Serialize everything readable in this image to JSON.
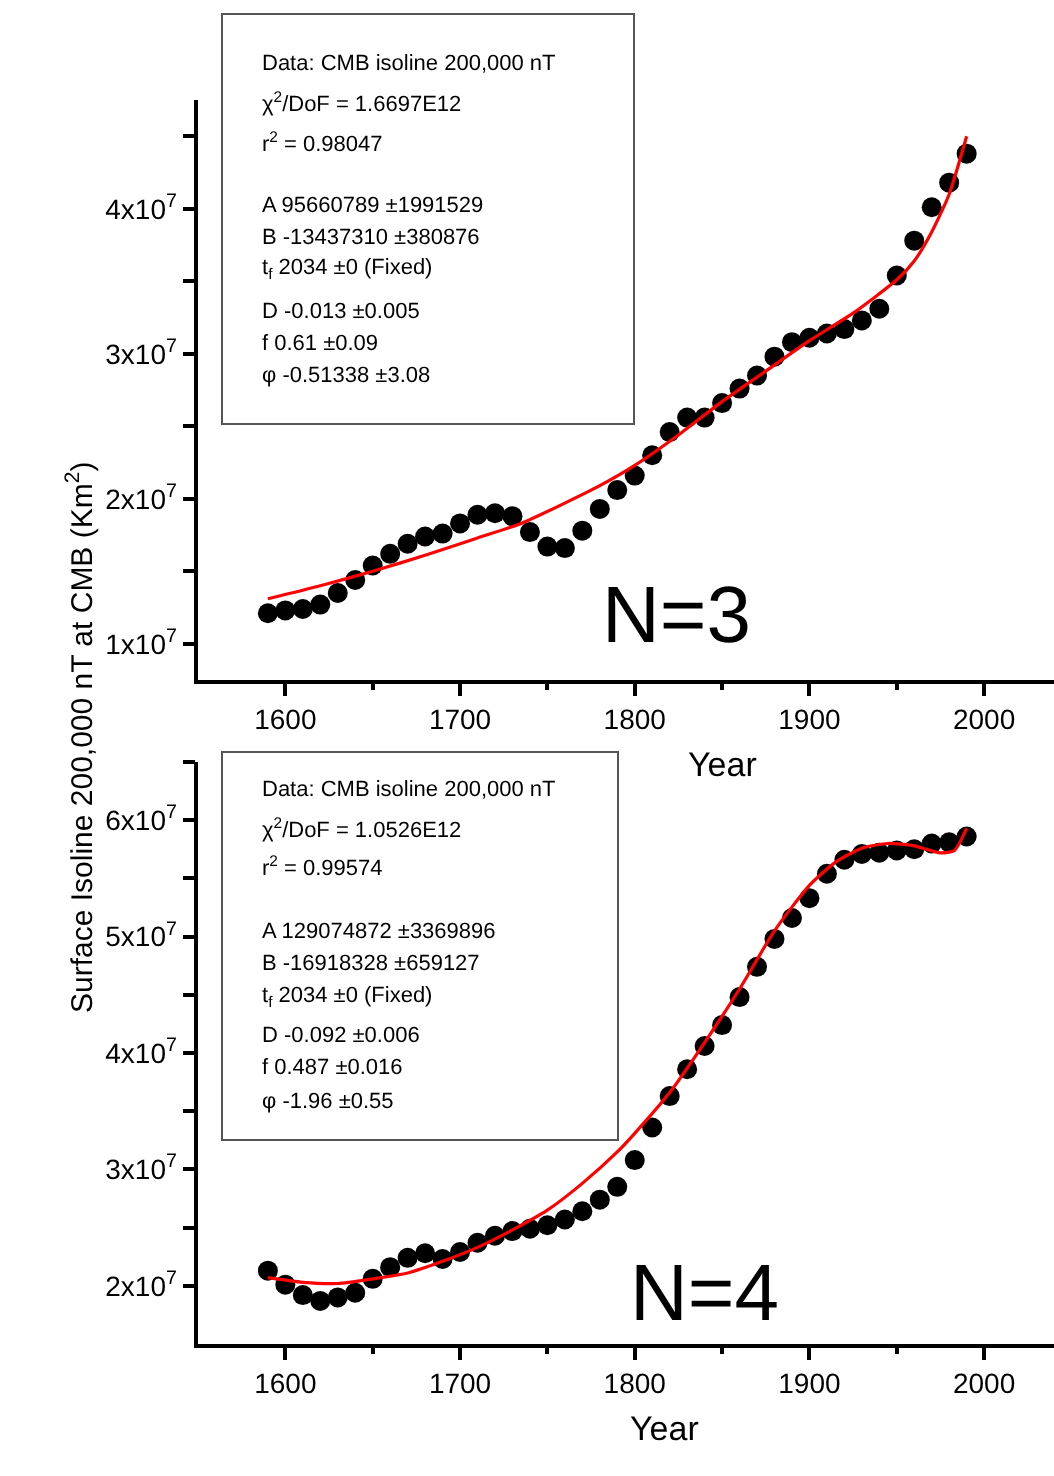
{
  "chart_data": [
    {
      "type": "scatter",
      "xlabel": "Year",
      "ylabel": "Surface Isoline 200,000 nT at CMB (Km$^{2}$)",
      "xlim": [
        1550,
        2040
      ],
      "ylim": [
        7500000,
        47500000
      ],
      "xticks": [
        1600,
        {
          "value": 1650,
          "label": null
        },
        1700,
        {
          "value": 1750,
          "label": null
        },
        1800,
        {
          "value": 1850,
          "label": null
        },
        1900,
        {
          "value": 1950,
          "label": null
        },
        2000
      ],
      "yticks": [
        {
          "value": 10000000,
          "label": "1x10$^{7}$"
        },
        {
          "value": 15000000,
          "label": null
        },
        {
          "value": 20000000,
          "label": "2x10$^{7}$"
        },
        {
          "value": 25000000,
          "label": null
        },
        {
          "value": 30000000,
          "label": "3x10$^{7}$"
        },
        {
          "value": 35000000,
          "label": null
        },
        {
          "value": 40000000,
          "label": "4x10$^{7}$"
        },
        {
          "value": 45000000,
          "label": null
        }
      ],
      "grid": false,
      "series": [
        {
          "color": "#000000",
          "marker": "circle",
          "x": [
            1590,
            1600,
            1610,
            1620,
            1630,
            1640,
            1650,
            1660,
            1670,
            1680,
            1690,
            1700,
            1710,
            1720,
            1730,
            1740,
            1750,
            1760,
            1770,
            1780,
            1790,
            1800,
            1810,
            1820,
            1830,
            1840,
            1850,
            1860,
            1870,
            1880,
            1890,
            1900,
            1910,
            1920,
            1930,
            1940,
            1950,
            1960,
            1970,
            1980,
            1990
          ],
          "values": [
            12100000,
            12300000,
            12400000,
            12700000,
            13500000,
            14400000,
            15400000,
            16200000,
            16900000,
            17400000,
            17600000,
            18300000,
            18900000,
            19000000,
            18800000,
            17700000,
            16700000,
            16600000,
            17800000,
            19300000,
            20600000,
            21600000,
            23000000,
            24600000,
            25600000,
            25600000,
            26600000,
            27600000,
            28500000,
            29800000,
            30800000,
            31100000,
            31400000,
            31700000,
            32300000,
            33100000,
            35400000,
            37800000,
            40100000,
            41800000,
            43800000
          ]
        },
        {
          "type": "line",
          "color": "#ff0000",
          "line_style": "solid",
          "x": [
            1590,
            1620,
            1650,
            1680,
            1710,
            1735,
            1760,
            1780,
            1800,
            1825,
            1850,
            1875,
            1900,
            1925,
            1950,
            1960,
            1970,
            1980,
            1990
          ],
          "values": [
            13100000,
            14000000,
            15000000,
            16100000,
            17300000,
            18300000,
            19700000,
            20900000,
            22300000,
            24400000,
            26700000,
            28800000,
            30900000,
            32800000,
            35100000,
            36400000,
            38400000,
            41000000,
            45000000
          ]
        }
      ],
      "annotations": [
        "Data: CMB isoline 200,000 nT",
        "χ$^{2}$/DoF = 1.6697E12",
        "r$^{2}$ = 0.98047",
        "A 95660789 ±1991529",
        "B -13437310 ±380876",
        "t$_{f}$ 2034 ±0 (Fixed)",
        "D -0.013 ±0.005",
        "f 0.61 ±0.09",
        "φ -0.51338 ±3.08",
        "N=3"
      ]
    },
    {
      "type": "scatter",
      "xlabel": "Year",
      "xlim": [
        1550,
        2040
      ],
      "ylim": [
        15000000,
        65000000
      ],
      "xticks": [
        1600,
        {
          "value": 1650,
          "label": null
        },
        1700,
        {
          "value": 1750,
          "label": null
        },
        1800,
        {
          "value": 1850,
          "label": null
        },
        1900,
        {
          "value": 1950,
          "label": null
        },
        2000
      ],
      "yticks": [
        {
          "value": 20000000,
          "label": "2x10$^{7}$"
        },
        {
          "value": 25000000,
          "label": null
        },
        {
          "value": 30000000,
          "label": "3x10$^{7}$"
        },
        {
          "value": 35000000,
          "label": null
        },
        {
          "value": 40000000,
          "label": "4x10$^{7}$"
        },
        {
          "value": 45000000,
          "label": null
        },
        {
          "value": 50000000,
          "label": "5x10$^{7}$"
        },
        {
          "value": 55000000,
          "label": null
        },
        {
          "value": 60000000,
          "label": "6x10$^{7}$"
        },
        {
          "value": 65000000,
          "label": null
        }
      ],
      "grid": false,
      "series": [
        {
          "color": "#000000",
          "marker": "circle",
          "x": [
            1590,
            1600,
            1610,
            1620,
            1630,
            1640,
            1650,
            1660,
            1670,
            1680,
            1690,
            1700,
            1710,
            1720,
            1730,
            1740,
            1750,
            1760,
            1770,
            1780,
            1790,
            1800,
            1810,
            1820,
            1830,
            1840,
            1850,
            1860,
            1870,
            1880,
            1890,
            1900,
            1910,
            1920,
            1930,
            1940,
            1950,
            1960,
            1970,
            1980,
            1990
          ],
          "values": [
            21300000,
            20100000,
            19200000,
            18700000,
            19000000,
            19400000,
            20600000,
            21600000,
            22400000,
            22800000,
            22300000,
            22900000,
            23700000,
            24300000,
            24700000,
            24900000,
            25200000,
            25700000,
            26400000,
            27400000,
            28500000,
            30800000,
            33600000,
            36300000,
            38600000,
            40600000,
            42400000,
            44800000,
            47400000,
            49800000,
            51600000,
            53300000,
            55400000,
            56600000,
            57100000,
            57200000,
            57400000,
            57500000,
            58000000,
            58100000,
            58600000
          ]
        },
        {
          "type": "line",
          "color": "#ff0000",
          "line_style": "solid",
          "x": [
            1590,
            1610,
            1630,
            1650,
            1670,
            1690,
            1710,
            1730,
            1750,
            1770,
            1790,
            1800,
            1820,
            1840,
            1860,
            1880,
            1900,
            1915,
            1930,
            1945,
            1960,
            1975,
            1983,
            1990
          ],
          "values": [
            20700000,
            20300000,
            20200000,
            20600000,
            21100000,
            22100000,
            23300000,
            24800000,
            26500000,
            28800000,
            31500000,
            33100000,
            36600000,
            40900000,
            45500000,
            50500000,
            54400000,
            56400000,
            57600000,
            58000000,
            57800000,
            57200000,
            57400000,
            59300000
          ]
        }
      ],
      "annotations": [
        "Data: CMB isoline 200,000 nT",
        "χ$^{2}$/DoF = 1.0526E12",
        "r$^{2}$ = 0.99574",
        "A 129074872 ±3369896",
        "B -16918328 ±659127",
        "t$_{f}$ 2034 ±0 (Fixed)",
        "D -0.092 ±0.006",
        "f 0.487 ±0.016",
        "φ -1.96 ±0.55",
        "N=4"
      ]
    }
  ]
}
